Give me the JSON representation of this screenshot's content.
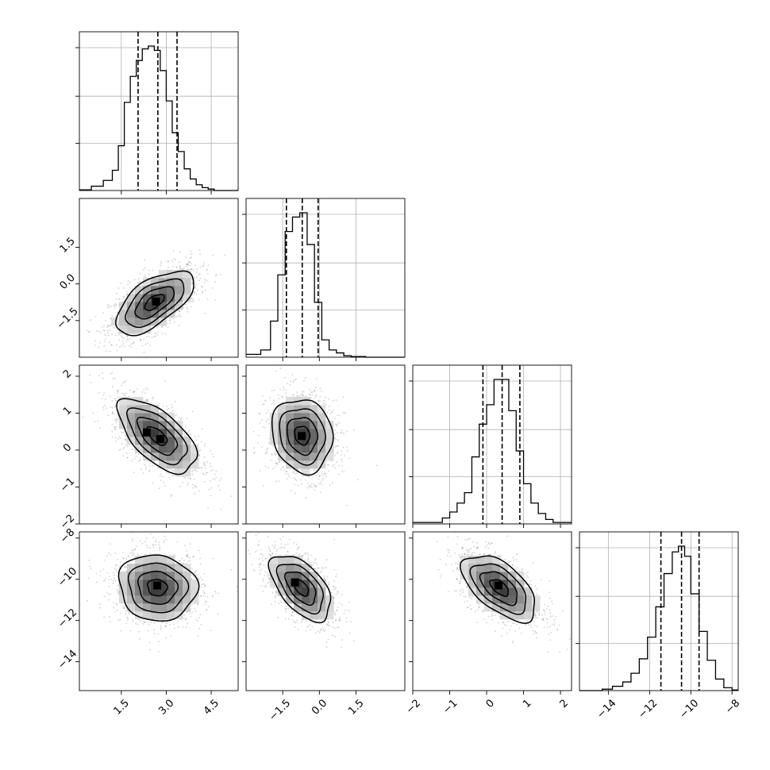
{
  "chart_data": {
    "type": "corner",
    "parameters": [
      {
        "id": "p0",
        "range": [
          0.1,
          5.4
        ],
        "ticks": [
          {
            "v": 1.5,
            "label": "1.5"
          },
          {
            "v": 3.0,
            "label": "3.0"
          },
          {
            "v": 4.5,
            "label": "4.5"
          }
        ],
        "quantiles": [
          2.06,
          2.72,
          3.36
        ],
        "hist_bins": [
          0.1,
          0.5,
          0.9,
          1.2,
          1.4,
          1.6,
          1.8,
          2.0,
          2.2,
          2.4,
          2.6,
          2.8,
          3.0,
          3.2,
          3.4,
          3.6,
          3.8,
          4.0,
          4.2,
          4.4,
          4.6,
          4.9,
          5.4
        ],
        "hist_counts": [
          0.005,
          0.03,
          0.07,
          0.14,
          0.31,
          0.61,
          0.79,
          0.9,
          0.98,
          1.0,
          0.97,
          0.83,
          0.62,
          0.4,
          0.27,
          0.15,
          0.08,
          0.04,
          0.02,
          0.01,
          0.0,
          0.0
        ]
      },
      {
        "id": "p1",
        "range": [
          -3.0,
          3.5
        ],
        "ticks": [
          {
            "v": -1.5,
            "label": "−1.5"
          },
          {
            "v": 0.0,
            "label": "0.0"
          },
          {
            "v": 1.5,
            "label": "1.5"
          }
        ],
        "quantiles": [
          -1.35,
          -0.7,
          -0.05
        ],
        "hist_bins": [
          -3.0,
          -2.4,
          -2.0,
          -1.7,
          -1.4,
          -1.1,
          -0.8,
          -0.5,
          -0.2,
          0.1,
          0.4,
          0.7,
          1.0,
          1.3,
          1.6,
          1.9,
          3.5
        ],
        "hist_counts": [
          0.02,
          0.05,
          0.25,
          0.57,
          0.87,
          0.97,
          1.0,
          0.78,
          0.38,
          0.12,
          0.05,
          0.03,
          0.01,
          0.005,
          0.005,
          0.0
        ]
      },
      {
        "id": "p2",
        "range": [
          -2.0,
          2.3
        ],
        "ticks": [
          {
            "v": -2,
            "label": "−2"
          },
          {
            "v": -1,
            "label": "−1"
          },
          {
            "v": 0,
            "label": "0"
          },
          {
            "v": 1,
            "label": "1"
          },
          {
            "v": 2,
            "label": "2"
          }
        ],
        "quantiles": [
          -0.1,
          0.42,
          0.9
        ],
        "hist_bins": [
          -2.0,
          -1.2,
          -1.0,
          -0.8,
          -0.6,
          -0.4,
          -0.2,
          0.0,
          0.2,
          0.4,
          0.6,
          0.8,
          1.0,
          1.2,
          1.4,
          1.6,
          1.8,
          2.3
        ],
        "hist_counts": [
          0.01,
          0.04,
          0.08,
          0.14,
          0.21,
          0.45,
          0.67,
          0.8,
          0.97,
          0.97,
          0.76,
          0.49,
          0.27,
          0.14,
          0.07,
          0.03,
          0.01
        ]
      },
      {
        "id": "p3",
        "range": [
          -15.4,
          -7.7
        ],
        "ticks": [
          {
            "v": -14,
            "label": "−14"
          },
          {
            "v": -12,
            "label": "−12"
          },
          {
            "v": -10,
            "label": "−10"
          },
          {
            "v": -8,
            "label": "−8"
          }
        ],
        "quantiles": [
          -11.45,
          -10.45,
          -9.6
        ],
        "hist_bins": [
          -15.4,
          -14.3,
          -13.8,
          -13.3,
          -12.9,
          -12.5,
          -12.1,
          -11.7,
          -11.3,
          -10.9,
          -10.6,
          -10.3,
          -10.0,
          -9.6,
          -9.2,
          -8.8,
          -8.4,
          -8.0,
          -7.7
        ],
        "hist_counts": [
          0.0,
          0.01,
          0.03,
          0.06,
          0.12,
          0.22,
          0.37,
          0.58,
          0.81,
          0.96,
          1.0,
          0.93,
          0.67,
          0.41,
          0.21,
          0.08,
          0.02,
          0.005
        ]
      }
    ],
    "joint": [
      {
        "row": 1,
        "col": 0,
        "center": [
          2.6,
          -0.75
        ],
        "sd": [
          0.65,
          0.65
        ],
        "rho": 0.62,
        "peak_cells": [
          [
            2.66,
            -0.72
          ]
        ]
      },
      {
        "row": 2,
        "col": 0,
        "center": [
          2.7,
          0.38
        ],
        "sd": [
          0.65,
          0.5
        ],
        "rho": -0.62,
        "peak_cells": [
          [
            2.35,
            0.48
          ],
          [
            2.8,
            0.3
          ]
        ]
      },
      {
        "row": 2,
        "col": 1,
        "center": [
          -0.7,
          0.4
        ],
        "sd": [
          0.62,
          0.5
        ],
        "rho": -0.12,
        "peak_cells": [
          [
            -0.72,
            0.38
          ]
        ]
      },
      {
        "row": 3,
        "col": 0,
        "center": [
          2.7,
          -10.4
        ],
        "sd": [
          0.65,
          0.8
        ],
        "rho": -0.08,
        "peak_cells": [
          [
            2.7,
            -10.3
          ]
        ]
      },
      {
        "row": 3,
        "col": 1,
        "center": [
          -0.75,
          -10.4
        ],
        "sd": [
          0.62,
          0.8
        ],
        "rho": -0.55,
        "peak_cells": [
          [
            -1.0,
            -10.15
          ]
        ]
      },
      {
        "row": 3,
        "col": 2,
        "center": [
          0.35,
          -10.4
        ],
        "sd": [
          0.5,
          0.8
        ],
        "rho": -0.58,
        "peak_cells": [
          [
            0.32,
            -10.3
          ]
        ]
      }
    ],
    "contour_levels_sigma": [
      0.5,
      1.0,
      1.5,
      2.0
    ],
    "grid": true,
    "colors": {
      "line": "#000000",
      "grid": "#b0b0b0",
      "points": "#7f7f7f"
    }
  }
}
